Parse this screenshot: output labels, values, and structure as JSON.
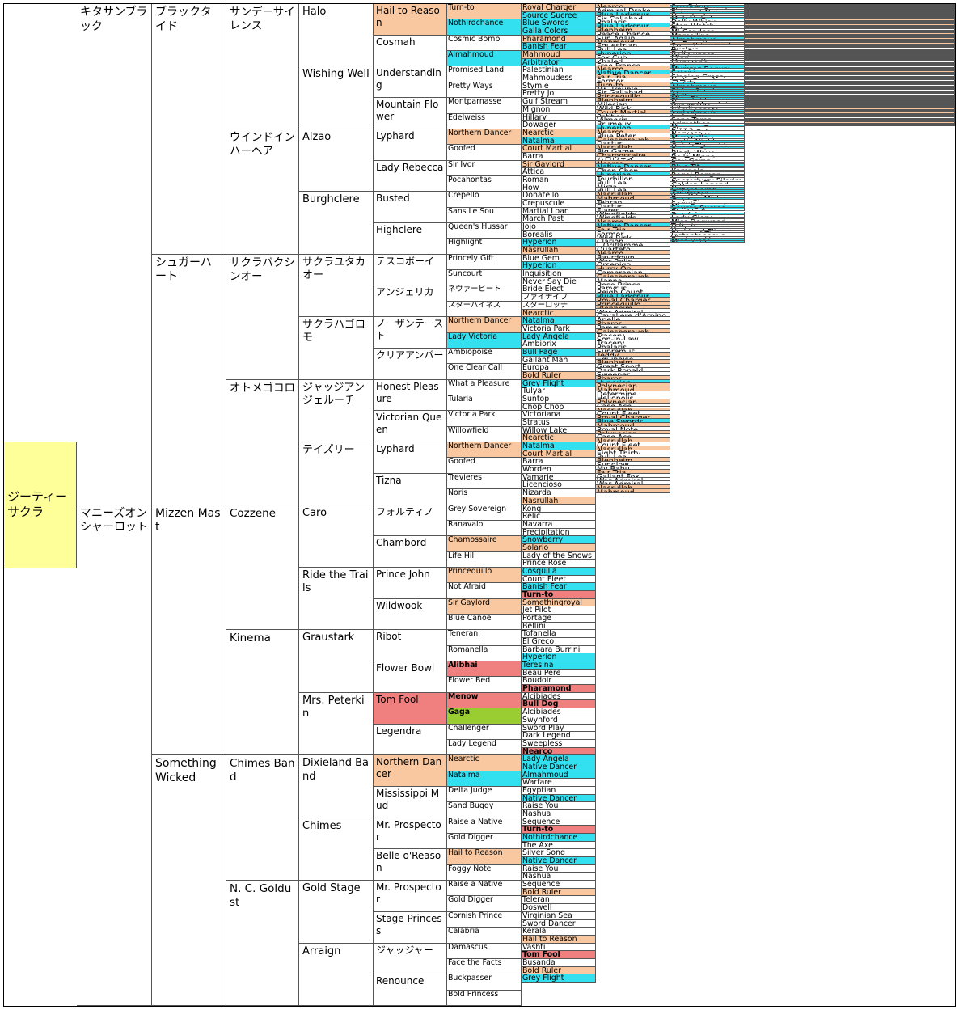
{
  "pedigree": {
    "subject": "ジーティーサクラ",
    "gen1": [
      "キタサンブラック",
      "マニーズオンシャーロット"
    ],
    "gen2": [
      "ブラックタイド",
      "シュガーハート",
      "Mizzen Mast",
      "Something Wicked"
    ],
    "gen3": [
      "サンデーサイレンス",
      "ウインドインハーヘア",
      "サクラバクシンオー",
      "オトメゴコロ",
      "Cozzene",
      "Kinema",
      "Chimes Band",
      "N. C. Goldust"
    ],
    "gen4": [
      "Halo",
      "Wishing Well",
      "Alzao",
      "Burghclere",
      "サクラユタカオー",
      "サクラハゴロモ",
      "ジャッジアンジェルーチ",
      "テイズリー",
      "Caro",
      "Ride the Trails",
      "Graustark",
      "Mrs. Peterkin",
      "Dixieland Band",
      "Chimes",
      "Gold Stage",
      "Arraign"
    ],
    "gen5": [
      "Hail to Reason",
      "Cosmah",
      "Understanding",
      "Mountain Flower",
      "Lyphard",
      "Lady Rebecca",
      "Busted",
      "Highclere",
      "テスコボーイ",
      "アンジェリカ",
      "ノーザンテースト",
      "クリアアンバー",
      "Honest Pleasure",
      "Victorian Queen",
      "Lyphard",
      "Tizna",
      "フォルティノ",
      "Chambord",
      "Prince John",
      "Wildwook",
      "Ribot",
      "Flower Bowl",
      "Tom Fool",
      "Legendra",
      "Northern Dancer",
      "Mississippi Mud",
      "Mr. Prospector",
      "Belle o'Reason",
      "Mr. Prospector",
      "Stage Princess",
      "ジャッジャー",
      "Renounce"
    ],
    "gen6": [
      "Turn-to",
      "Nothirdchance",
      "Cosmic Bomb",
      "Almahmoud",
      "Promised Land",
      "Pretty Ways",
      "Montparnasse",
      "Edelweiss",
      "Northern Dancer",
      "Goofed",
      "Sir Ivor",
      "Pocahontas",
      "Crepello",
      "Sans Le Sou",
      "Queen's Hussar",
      "Highlight",
      "Princely Gift",
      "Suncourt",
      "ネヴァービート",
      "スターハイネス",
      "Northern Dancer",
      "Lady Victoria",
      "Ambiopoise",
      "One Clear Call",
      "What a Pleasure",
      "Tularia",
      "Victoria Park",
      "Willowfield",
      "Northern Dancer",
      "Goofed",
      "Trevieres",
      "Noris",
      "Grey Sovereign",
      "Ranavalo",
      "Chamossaire",
      "Life Hill",
      "Princequillo",
      "Not Afraid",
      "Sir Gaylord",
      "Blue Canoe",
      "Tenerani",
      "Romanella",
      "Alibhai",
      "Flower Bed",
      "Menow",
      "Gaga",
      "Challenger",
      "Lady Legend",
      "Nearctic",
      "Natalma",
      "Delta Judge",
      "Sand Buggy",
      "Raise a Native",
      "Gold Digger",
      "Hail to Reason",
      "Foggy Note",
      "Raise a Native",
      "Gold Digger",
      "Cornish Prince",
      "Calabria",
      "Damascus",
      "Face the Facts",
      "Buckpasser",
      "Bold Princess"
    ],
    "gen7": [
      "Royal Charger",
      "Source Sucree",
      "Blue Swords",
      "Galla Colors",
      "Pharamond",
      "Banish Fear",
      "Mahmoud",
      "Arbitrator",
      "Palestinian",
      "Mahmoudess",
      "Stymie",
      "Pretty Jo",
      "Gulf Stream",
      "Mignon",
      "Hillary",
      "Dowager",
      "Nearctic",
      "Natalma",
      "Court Martial",
      "Barra",
      "Sir Gaylord",
      "Attica",
      "Roman",
      "How",
      "Donatello",
      "Crepuscule",
      "Martial Loan",
      "March Past",
      "Jojo",
      "Borealis",
      "Hyperion",
      "Nasrullah",
      "Blue Gem",
      "Hyperion",
      "Inquisition",
      "Never Say Die",
      "Bride Elect",
      "ファイナイフ",
      "スターロッチ",
      "Nearctic",
      "Natalma",
      "Victoria Park",
      "Lady Angela",
      "Ambiorix",
      "Bull Page",
      "Gallant Man",
      "Europa",
      "Bold Ruler",
      "Grey Flight",
      "Tulyar",
      "Suntop",
      "Chop Chop",
      "Victoriana",
      "Stratus",
      "Willow Lake",
      "Nearctic",
      "Natalma",
      "Court Martial",
      "Barra",
      "Worden",
      "Vamarie",
      "Licencioso",
      "Nizarda",
      "Nasrullah",
      "Kong",
      "Relic",
      "Navarra",
      "Precipitation",
      "Snowberry",
      "Solario",
      "Lady of the Snows",
      "Prince Rose",
      "Cosquilla",
      "Count Fleet",
      "Banish Fear",
      "Turn-to",
      "Somethingroyal",
      "Jet Pilot",
      "Portage",
      "Bellini",
      "Tofanella",
      "El Greco",
      "Barbara Burrini",
      "Hyperion",
      "Teresina",
      "Beau Pere",
      "Boudoir",
      "Pharamond",
      "Alcibiades",
      "Bull Dog",
      "Alcibiades",
      "Swynford",
      "Sword Play",
      "Dark Legend",
      "Sweepless",
      "Nearco",
      "Lady Angela",
      "Native Dancer",
      "Almahmoud",
      "Warfare",
      "Egyptian",
      "Native Dancer",
      "Raise You",
      "Nashua",
      "Sequence",
      "Turn-to",
      "Nothirdchance",
      "The Axe",
      "Silver Song",
      "Native Dancer",
      "Raise You",
      "Nashua",
      "Sequence",
      "Bold Ruler",
      "Teleran",
      "Doswell",
      "Virginian Sea",
      "Sword Dancer",
      "Kerala",
      "Hail to Reason",
      "Vashti",
      "Tom Fool",
      "Busanda",
      "Bold Ruler",
      "Grey Flight"
    ],
    "gen8": [
      "Nearco",
      "Admiral Drake",
      "Blue Larkspur",
      "Sir Gallahad",
      "Phalaris",
      "Blue Larkspur",
      "Blenheim",
      "Peace Chance",
      "Sun Again",
      "Mahmoud",
      "Equestrian",
      "Bull Lea",
      "Hyperion",
      "Fox Cub",
      "Khaled",
      "Free France",
      "Nearco",
      "Native Dancer",
      "Fair Trial",
      "Formor",
      "Turn-to",
      "Mr. Trouble",
      "Sir Gallahad",
      "Princequillo",
      "Blenheim",
      "Milesian",
      "Wild Risk",
      "Court Martial",
      "Petition",
      "Vilmorin",
      "Brumeux",
      "Hyperion",
      "Nearco",
      "Blue Peter",
      "Gainsborough",
      "Dastur",
      "Nasrullah",
      "Big Game",
      "Chamossaire",
      "ハロウェイ",
      "Nearco",
      "Native Dancer",
      "Chop Chop",
      "Hyperion",
      "Tourbillon",
      "Bull Lea",
      "Mirza",
      "Bull Lea",
      "Nasrullah",
      "Mahmoud",
      "Tehran",
      "Dastur",
      "Flares",
      "Windfields",
      "Windfields",
      "Nearco",
      "Native Dancer",
      "Fair Trial",
      "Formor",
      "Wild Risk",
      "Clarion",
      "L'Oriflamme",
      "Quarteto",
      "Nearco",
      "Bayrdown",
      "War Relic",
      "Orsenigo",
      "Hurry On",
      "Cameronian",
      "Gainsborough",
      "Manna",
      "Rose Prince",
      "Papyrus",
      "Reigh Count",
      "Blue Larkspur",
      "Royal Charger",
      "Princequillo",
      "Blenheim",
      "War Admiral",
      "Cavaliere d'Arpino",
      "Apelle",
      "Pharos",
      "Papyrus",
      "Gainsborough",
      "Tracery",
      "Son-in-Law",
      "Tracery",
      "Phalaris",
      "Supremus",
      "Teddy",
      "Equipoise",
      "Blenheim",
      "Great Sport",
      "Dark Ronald",
      "Sweeper",
      "Pharos",
      "Hyperion",
      "Polynesian",
      "Mahmoud",
      "Determine",
      "Heliopolis",
      "Polynesian",
      "Case Ace",
      "Nasrullah",
      "Count Fleet",
      "Royal Charger",
      "Blue Swords",
      "Mahmoud",
      "Royal Note",
      "Polynesian",
      "Case Ace",
      "Nasrullah",
      "Count Fleet",
      "Nasrullah",
      "Eight Thirty",
      "Bull Lea",
      "Blenheim",
      "Sunglow",
      "My Babu",
      "Fair Trial",
      "Gallant Fox",
      "War Admiral",
      "War Admiral",
      "Nasrullah",
      "Mahmoud"
    ],
    "gen9": [
      "Sun Princess",
      "Lavendula",
      "Flaming Swords",
      "Reine et Noir",
      "Selene",
      "Herodiade",
      "Mah Mahal",
      "Mother Goose",
      "Dolly Whisk",
      "Forever Yours",
      "Stop Watch",
      "Fib",
      "Tide-way",
      "Mi Condesa",
      "Snow Bunny",
      "Marcellina",
      "Lady Angela",
      "Almahmoud",
      "Instantaneous",
      "La Favorite",
      "Somethingroyal",
      "Athenia",
      "Buckup",
      "The Squaw",
      "Dellena",
      "Red Sunset",
      "Mimi",
      "Loan",
      "Marcelette",
      "Fairy Jane",
      "Aurora",
      "Feola",
      "Mumtaz Begum",
      "Sparkle",
      "Selene",
      "Jury",
      "Singing Grass",
      "Netherton Maid",
      "Lady Grand",
      "ココナ",
      "Lady Angela",
      "Almahmoud",
      "Victoriana",
      "Sister Sarah",
      "Lavendula",
      "Alcazar",
      "Sicily",
      "Miss Disco",
      "Planetoid",
      "Neocracy",
      "Sunny Mountain",
      "Windfields",
      "Iribelle",
      "Compensate",
      "Lady Angela",
      "Almahmoud",
      "Instantaneous",
      "La Favorite",
      "Sans Tares",
      "Winona",
      "Arimathea",
      "Niza",
      "Mumtaz Begum",
      "Clang",
      "Bridal Colors",
      "Nervesa",
      "Double Life",
      "Myrobella",
      "Sun Worship",
      "Arctic Night",
      "Selene",
      "Quick Thought",
      "Herodiade",
      "Source Sucree",
      "Imperatrice",
      "Black Wave",
      "Carillon",
      "Bella Minna",
      "Try Try Again",
      "Gay Gamp",
      "Bucolic",
      "Selene",
      "Blue Tit",
      "Cinna",
      "Kampala",
      "Selene",
      "Regal Roman",
      "Plucky Liege",
      "Laughing Queen",
      "Canterbury Pilgrim",
      "Flash of Steel",
      "Golden Legend",
      "Artless",
      "Nogara",
      "Sister Sarah",
      "Geisha",
      "Arbitrator",
      "War Whisk",
      "Evening Mist",
      "Geisha",
      "Lady Glory",
      "Segula",
      "Miss Dogwood",
      "Source Sucree",
      "Galla Colors",
      "Blackball",
      "Beadah",
      "Geisha",
      "Lady Glory",
      "Segula",
      "Miss Dogwood",
      "Miss Disco",
      "Tellaris",
      "Hithcliere",
      "Yentna",
      "Highland Fling",
      "Blade of Time",
      "Instantaneous",
      "Vicaress",
      "Businesslike",
      "Miss Disco",
      "Planetoid"
    ],
    "gen10": [
      "Pharos",
      "Orsini",
      "Black Servant",
      "Sainfoin",
      "Polymelus",
      "Black Servant",
      "Blandford",
      "Chicle",
      "Sun Teddy",
      "Blenheim",
      "Gainsborough",
      "Bull Dog",
      "Gainsborough",
      "Fox Hunter",
      "Hyperion",
      "Man o'War",
      "Pharos",
      "Polynesian",
      "Fairway",
      "Ksar",
      "Royal Charger",
      "Mahmoud",
      "Teddy",
      "Prince Rose",
      "Blandford",
      "Massine",
      "Rialto",
      "Fair Trial",
      "Fair Trial",
      "Gold Bridge",
      "Teddy",
      "Gainsborough",
      "Pharos",
      "Fairway",
      "Bayardo",
      "Solario",
      "Nearco",
      "Bahram",
      "Precipitation",
      "Fairway",
      "Pharos",
      "Polynesian",
      "Flares",
      "Gainsborough",
      "Ksar",
      "Bull Dog",
      "Bois Roussel",
      "Bull Dog",
      "Nearco",
      "Blenheim",
      "Bois Roussel",
      "Solario",
      "Gallant Fox",
      "Bunty Lawless",
      "Bunty Lawless",
      "Pharos",
      "Polynesian",
      "Fairway",
      "Ksar",
      "Rialto",
      "Diebel",
      "Madrigal",
      "Tresiete",
      "Pharos",
      "Achtoi",
      "Man o'War",
      "Oleander",
      "Marcovil",
      "Hurry On",
      "Pharos",
      "Bayardo",
      "Prince Palatine",
      "Tracery",
      "Reigh Count",
      "Black Servant",
      "Nearco",
      "Prince Rose",
      "Blandford",
      "Man o'War",
      "Havresac",
      "Sardanapale",
      "Phalaris",
      "Phalaris",
      "Bayardo",
      "Rock Sand",
      "Dark Ronald",
      "Rock Sand",
      "Polymelus",
      "Ultimus",
      "Ajax",
      "Pennant",
      "John o'Gaunt",
      "Gallinule",
      "Bay Ronald",
      "Broomstick",
      "Phalaris",
      "Gainsborough",
      "Unbreakable",
      "Blenheim",
      "Display",
      "Bois Roussel",
      "Unbreakable",
      "Teddy",
      "Nearco",
      "Reigh Count",
      "Nearco",
      "Blue Larkspur",
      "Blenheim",
      "Spy Song",
      "Unbreakable",
      "Teddy",
      "Nearco",
      "Reigh Count",
      "Nearco",
      "Pilate",
      "Bull Dog",
      "Blandford",
      "Sun Again",
      "Djebel",
      "Fair Trial",
      "Sir Gallahad",
      "Pharamond",
      "Man o'War",
      "Pharos",
      "Blenheim"
    ]
  },
  "palette": {
    "subject": "#ffff99",
    "orange": "#f9c8a0",
    "cyan": "#33e0f0",
    "red": "#f08080",
    "green": "#9acd32"
  }
}
